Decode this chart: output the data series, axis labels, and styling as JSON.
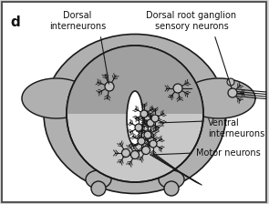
{
  "bg_color": "#d8d8d8",
  "white": "#ffffff",
  "outer_body_color": "#b0b0b0",
  "inner_light_color": "#c8c8c8",
  "inner_dark_color": "#a0a0a0",
  "line_color": "#1a1a1a",
  "text_color": "#111111",
  "neuron_fill": "#c0c0c0",
  "panel_label": "d",
  "label_dorsal_int": "Dorsal\ninterneurons",
  "label_dorsal_root": "Dorsal root ganglion\nsensory neurons",
  "label_ventral_int": "Ventral\ninterneurons",
  "label_motor": "Motor neurons",
  "fontsize": 7.0
}
